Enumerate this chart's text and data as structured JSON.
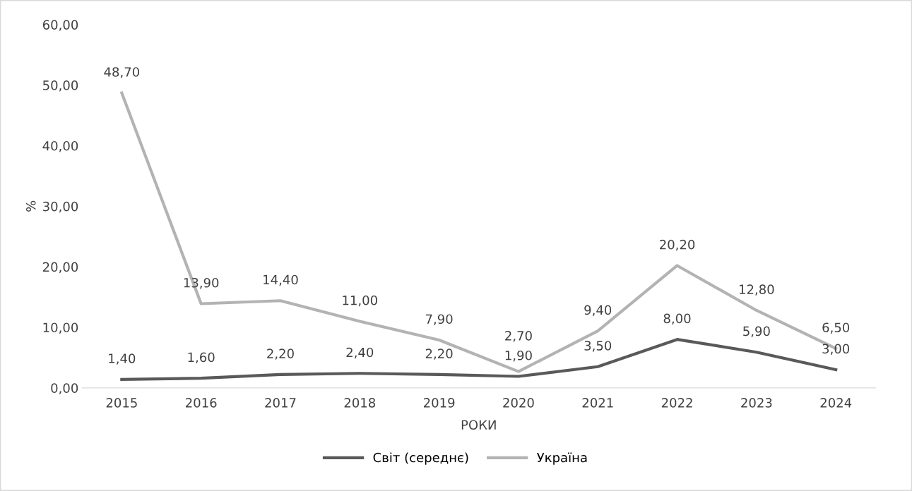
{
  "chart_data": {
    "type": "line",
    "categories": [
      "2015",
      "2016",
      "2017",
      "2018",
      "2019",
      "2020",
      "2021",
      "2022",
      "2023",
      "2024"
    ],
    "xlabel": "РОКИ",
    "ylabel": "%",
    "ylim": [
      0,
      60
    ],
    "yticks": [
      {
        "value": 0,
        "label": "0,00"
      },
      {
        "value": 10,
        "label": "10,00"
      },
      {
        "value": 20,
        "label": "20,00"
      },
      {
        "value": 30,
        "label": "30,00"
      },
      {
        "value": 40,
        "label": "40,00"
      },
      {
        "value": 50,
        "label": "50,00"
      },
      {
        "value": 60,
        "label": "60,00"
      }
    ],
    "series": [
      {
        "name": "Світ (середнє)",
        "color": "#595959",
        "values": [
          1.4,
          1.6,
          2.2,
          2.4,
          2.2,
          1.9,
          3.5,
          8.0,
          5.9,
          3.0
        ],
        "value_labels": [
          "1,40",
          "1,60",
          "2,20",
          "2,40",
          "2,20",
          "1,90",
          "3,50",
          "8,00",
          "5,90",
          "3,00"
        ]
      },
      {
        "name": "Україна",
        "color": "#b3b3b3",
        "values": [
          48.7,
          13.9,
          14.4,
          11.0,
          7.9,
          2.7,
          9.4,
          20.2,
          12.8,
          6.5
        ],
        "value_labels": [
          "48,70",
          "13,90",
          "14,40",
          "11,00",
          "7,90",
          "2,70",
          "9,40",
          "20,20",
          "12,80",
          "6,50"
        ]
      }
    ],
    "marker": "none",
    "line_style": "solid",
    "grid": false,
    "legend": "bottom"
  }
}
